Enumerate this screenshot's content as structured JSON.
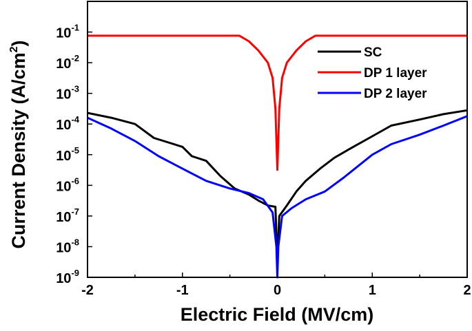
{
  "chart_data": {
    "type": "line",
    "xlabel": "Electric Field (MV/cm)",
    "ylabel_main": "Current Density (A/cm",
    "ylabel_sup": "2",
    "ylabel_close": ")",
    "xlim": [
      -2,
      2
    ],
    "ylim": [
      1e-09,
      1
    ],
    "yscale": "log",
    "grid": false,
    "legend": "top-right",
    "x_ticks": [
      {
        "v": -2,
        "label": "-2"
      },
      {
        "v": -1,
        "label": "-1"
      },
      {
        "v": 0,
        "label": "0"
      },
      {
        "v": 1,
        "label": "1"
      },
      {
        "v": 2,
        "label": "2"
      }
    ],
    "y_ticks": [
      {
        "v": 0.1,
        "base": "10",
        "exp": "-1"
      },
      {
        "v": 0.01,
        "base": "10",
        "exp": "-2"
      },
      {
        "v": 0.001,
        "base": "10",
        "exp": "-3"
      },
      {
        "v": 0.0001,
        "base": "10",
        "exp": "-4"
      },
      {
        "v": 1e-05,
        "base": "10",
        "exp": "-5"
      },
      {
        "v": 1e-06,
        "base": "10",
        "exp": "-6"
      },
      {
        "v": 1e-07,
        "base": "10",
        "exp": "-7"
      },
      {
        "v": 1e-08,
        "base": "10",
        "exp": "-8"
      },
      {
        "v": 1e-09,
        "base": "10",
        "exp": "-9"
      }
    ],
    "series": [
      {
        "name": "SC",
        "color": "#000000",
        "x": [
          -2,
          -1.75,
          -1.5,
          -1.3,
          -1.0,
          -0.9,
          -0.75,
          -0.6,
          -0.45,
          -0.3,
          -0.2,
          -0.1,
          -0.02,
          0,
          0.02,
          0.1,
          0.2,
          0.3,
          0.45,
          0.6,
          0.8,
          1.0,
          1.2,
          1.5,
          1.75,
          2
        ],
        "y": [
          0.00023,
          0.00016,
          0.0001,
          3.5e-05,
          1.8e-05,
          8.9e-06,
          6.3e-06,
          2e-06,
          7.9e-07,
          5e-07,
          3.2e-07,
          2.2e-07,
          2e-07,
          3.2e-09,
          1e-07,
          2.2e-07,
          6.3e-07,
          1.4e-06,
          3.5e-06,
          7.9e-06,
          1.8e-05,
          4e-05,
          8.9e-05,
          0.00014,
          0.00021,
          0.00028
        ]
      },
      {
        "name": "DP 1 layer",
        "color": "#ff0000",
        "x": [
          -2,
          -0.4,
          -0.3,
          -0.2,
          -0.1,
          -0.05,
          -0.02,
          -0.01,
          0,
          0.01,
          0.02,
          0.05,
          0.1,
          0.2,
          0.3,
          0.4,
          2
        ],
        "y": [
          0.076,
          0.076,
          0.05,
          0.025,
          0.01,
          0.0032,
          0.00032,
          3.2e-05,
          3.2e-06,
          3.2e-05,
          0.00032,
          0.0032,
          0.01,
          0.025,
          0.05,
          0.076,
          0.076
        ]
      },
      {
        "name": "DP 2 layer",
        "color": "#0000ff",
        "x": [
          -2,
          -1.75,
          -1.5,
          -1.25,
          -1.0,
          -0.75,
          -0.5,
          -0.3,
          -0.15,
          -0.05,
          -0.01,
          0,
          0.01,
          0.05,
          0.15,
          0.3,
          0.5,
          0.7,
          1.0,
          1.2,
          1.5,
          1.75,
          2
        ],
        "y": [
          0.00016,
          7.1e-05,
          2.8e-05,
          8.9e-06,
          3.5e-06,
          1.4e-06,
          7.9e-07,
          5.6e-07,
          3.5e-07,
          1.3e-07,
          1e-08,
          1e-09,
          1e-08,
          1e-07,
          1.8e-07,
          3.5e-07,
          6.3e-07,
          1.8e-06,
          1e-05,
          2.2e-05,
          4.5e-05,
          8.9e-05,
          0.00018
        ]
      }
    ]
  }
}
